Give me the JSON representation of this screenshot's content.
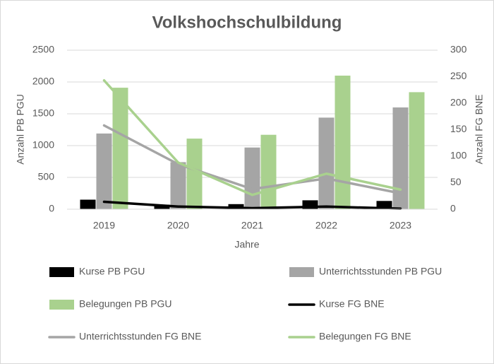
{
  "chart_data": {
    "type": "bar",
    "title": "Volkshochschulbildung",
    "x_label": "Jahre",
    "y_label": "Anzahl PB PGU",
    "y2_label": "Anzahl FG BNE",
    "categories": [
      "2019",
      "2020",
      "2021",
      "2022",
      "2023"
    ],
    "ylim": [
      0,
      2500
    ],
    "yticks": [
      0,
      500,
      1000,
      1500,
      2000,
      2500
    ],
    "y2lim": [
      0,
      300
    ],
    "y2ticks": [
      0,
      50,
      100,
      150,
      200,
      250,
      300
    ],
    "grid": true,
    "legend": "bottom",
    "series": [
      {
        "name": "Kurse PB PGU",
        "type": "bar",
        "color": "#000000",
        "values": [
          150,
          70,
          80,
          140,
          130
        ]
      },
      {
        "name": "Unterrichtsstunden PB PGU",
        "type": "bar",
        "color": "#a5a5a5",
        "values": [
          1190,
          740,
          970,
          1440,
          1600
        ]
      },
      {
        "name": "Belegungen PB PGU",
        "type": "bar",
        "color": "#a9d18e",
        "values": [
          1910,
          1110,
          1170,
          2100,
          1840
        ]
      },
      {
        "name": "Kurse FG BNE",
        "type": "line",
        "axis": "y2",
        "color": "#000000",
        "values": [
          14,
          5,
          2,
          5,
          1
        ]
      },
      {
        "name": "Unterrichtsstunden FG BNE",
        "type": "line",
        "axis": "y2",
        "color": "#a5a5a5",
        "values": [
          158,
          85,
          38,
          58,
          30
        ]
      },
      {
        "name": "Belegungen FG BNE",
        "type": "line",
        "axis": "y2",
        "color": "#a9d18e",
        "values": [
          243,
          88,
          27,
          67,
          37
        ]
      }
    ]
  }
}
